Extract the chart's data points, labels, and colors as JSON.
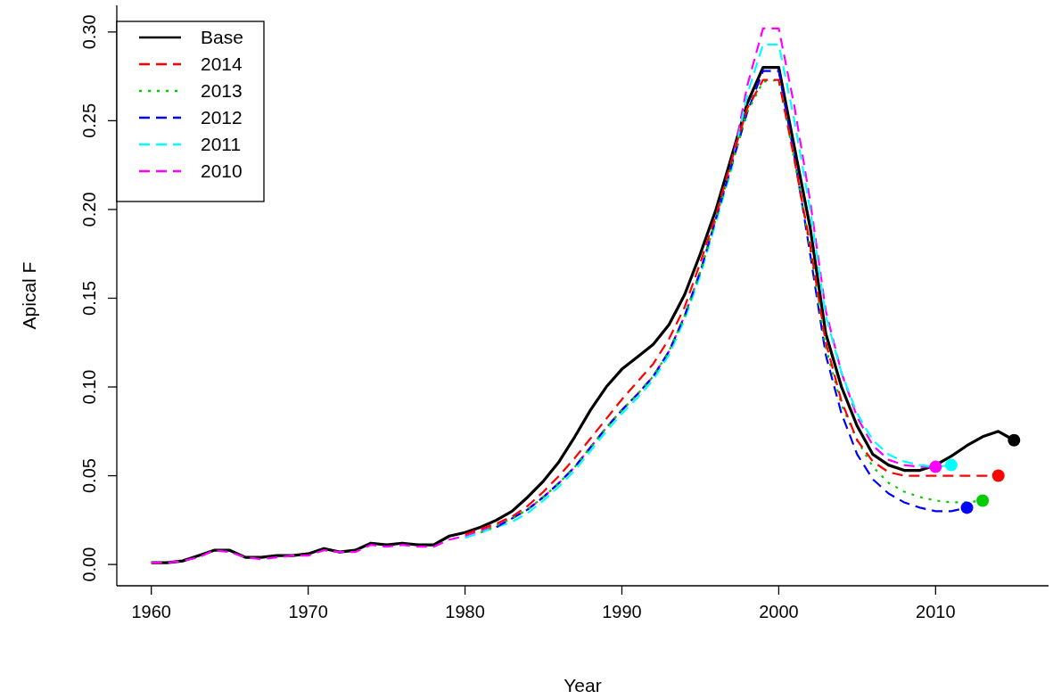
{
  "chart_data": {
    "type": "line",
    "xlabel": "Year",
    "ylabel": "Apical F",
    "x": [
      1960,
      1961,
      1962,
      1963,
      1964,
      1965,
      1966,
      1967,
      1968,
      1969,
      1970,
      1971,
      1972,
      1973,
      1974,
      1975,
      1976,
      1977,
      1978,
      1979,
      1980,
      1981,
      1982,
      1983,
      1984,
      1985,
      1986,
      1987,
      1988,
      1989,
      1990,
      1991,
      1992,
      1993,
      1994,
      1995,
      1996,
      1997,
      1998,
      1999,
      2000,
      2001,
      2002,
      2003,
      2004,
      2005,
      2006,
      2007,
      2008,
      2009,
      2010,
      2011,
      2012,
      2013,
      2014,
      2015
    ],
    "xlim": [
      1957.8,
      2017.2
    ],
    "xticks": [
      1960,
      1970,
      1980,
      1990,
      2000,
      2010
    ],
    "ylim": [
      -0.012,
      0.315
    ],
    "yticks": [
      {
        "value": 0,
        "label": "0.00"
      },
      {
        "value": 0.05,
        "label": "0.05"
      },
      {
        "value": 0.1,
        "label": "0.10"
      },
      {
        "value": 0.15,
        "label": "0.15"
      },
      {
        "value": 0.2,
        "label": "0.20"
      },
      {
        "value": 0.25,
        "label": "0.25"
      },
      {
        "value": 0.3,
        "label": "0.30"
      }
    ],
    "grid": false,
    "legend": "top left",
    "series": [
      {
        "name": "Base",
        "color": "#000000",
        "line_style": "solid",
        "values": [
          0.001,
          0.001,
          0.002,
          0.005,
          0.008,
          0.008,
          0.004,
          0.004,
          0.005,
          0.005,
          0.006,
          0.009,
          0.007,
          0.008,
          0.012,
          0.011,
          0.012,
          0.011,
          0.011,
          0.016,
          0.018,
          0.021,
          0.025,
          0.03,
          0.038,
          0.047,
          0.058,
          0.072,
          0.087,
          0.1,
          0.11,
          0.117,
          0.124,
          0.135,
          0.152,
          0.175,
          0.2,
          0.23,
          0.26,
          0.28,
          0.28,
          0.235,
          0.19,
          0.13,
          0.1,
          0.078,
          0.062,
          0.056,
          0.053,
          0.053,
          0.056,
          0.061,
          0.067,
          0.072,
          0.075,
          0.07
        ]
      },
      {
        "name": "2014",
        "color": "#ff0000",
        "line_style": "dashed",
        "values": [
          null,
          null,
          null,
          null,
          null,
          null,
          null,
          null,
          null,
          null,
          null,
          null,
          null,
          null,
          null,
          null,
          null,
          null,
          null,
          null,
          0.017,
          0.02,
          0.023,
          0.027,
          0.033,
          0.041,
          0.05,
          0.06,
          0.071,
          0.082,
          0.093,
          0.103,
          0.113,
          0.127,
          0.145,
          0.17,
          0.197,
          0.228,
          0.257,
          0.273,
          0.273,
          0.228,
          0.18,
          0.125,
          0.092,
          0.07,
          0.058,
          0.052,
          0.05,
          0.05,
          0.05,
          0.05,
          0.05,
          0.05,
          0.05,
          null
        ]
      },
      {
        "name": "2013",
        "color": "#00cd00",
        "line_style": "dotted",
        "values": [
          null,
          null,
          null,
          null,
          null,
          null,
          null,
          null,
          null,
          null,
          null,
          null,
          null,
          null,
          null,
          null,
          null,
          null,
          null,
          null,
          null,
          0.018,
          0.022,
          0.026,
          0.031,
          0.038,
          0.046,
          0.055,
          0.066,
          0.077,
          0.087,
          0.096,
          0.106,
          0.12,
          0.14,
          0.165,
          0.195,
          0.225,
          0.255,
          0.272,
          0.273,
          0.228,
          0.178,
          0.122,
          0.09,
          0.07,
          0.055,
          0.046,
          0.041,
          0.038,
          0.036,
          0.035,
          0.035,
          0.036,
          null,
          null
        ]
      },
      {
        "name": "2012",
        "color": "#0000ff",
        "line_style": "dashed",
        "values": [
          null,
          null,
          null,
          null,
          null,
          null,
          null,
          null,
          null,
          null,
          null,
          null,
          null,
          null,
          null,
          null,
          null,
          null,
          null,
          null,
          null,
          null,
          0.021,
          0.026,
          0.031,
          0.038,
          0.046,
          0.055,
          0.066,
          0.077,
          0.087,
          0.096,
          0.106,
          0.12,
          0.14,
          0.165,
          0.195,
          0.225,
          0.255,
          0.278,
          0.278,
          0.23,
          0.175,
          0.118,
          0.085,
          0.062,
          0.048,
          0.04,
          0.035,
          0.032,
          0.03,
          0.03,
          0.032,
          null,
          null,
          null
        ]
      },
      {
        "name": "2011",
        "color": "#00ffff",
        "line_style": "dashed",
        "values": [
          null,
          null,
          null,
          null,
          null,
          null,
          null,
          null,
          null,
          null,
          null,
          null,
          null,
          null,
          null,
          null,
          null,
          null,
          null,
          null,
          0.015,
          0.018,
          0.021,
          0.024,
          0.029,
          0.036,
          0.044,
          0.053,
          0.064,
          0.075,
          0.085,
          0.094,
          0.104,
          0.118,
          0.138,
          0.163,
          0.193,
          0.223,
          0.265,
          0.293,
          0.293,
          0.25,
          0.2,
          0.14,
          0.108,
          0.085,
          0.07,
          0.062,
          0.058,
          0.056,
          0.055,
          0.056,
          null,
          null,
          null,
          null
        ]
      },
      {
        "name": "2010",
        "color": "#ff00ff",
        "line_style": "dashed",
        "values": [
          0.001,
          0.001,
          0.002,
          0.004,
          0.008,
          0.007,
          0.004,
          0.003,
          0.004,
          0.005,
          0.005,
          0.008,
          0.007,
          0.007,
          0.011,
          0.01,
          0.011,
          0.01,
          0.01,
          0.014,
          0.016,
          0.019,
          0.022,
          0.026,
          0.031,
          0.038,
          0.046,
          0.055,
          0.066,
          0.077,
          0.087,
          0.096,
          0.106,
          0.12,
          0.14,
          0.165,
          0.195,
          0.225,
          0.27,
          0.302,
          0.302,
          0.258,
          0.205,
          0.143,
          0.108,
          0.083,
          0.067,
          0.059,
          0.056,
          0.055,
          0.055,
          null,
          null,
          null,
          null,
          null
        ]
      },
      {
        "type": "scatter",
        "marker": "circle",
        "color": "#000000",
        "x": [
          2015
        ],
        "values": [
          0.07
        ]
      },
      {
        "type": "scatter",
        "marker": "circle",
        "color": "#ff0000",
        "x": [
          2014
        ],
        "values": [
          0.05
        ]
      },
      {
        "type": "scatter",
        "marker": "circle",
        "color": "#00cd00",
        "x": [
          2013
        ],
        "values": [
          0.036
        ]
      },
      {
        "type": "scatter",
        "marker": "circle",
        "color": "#0000ff",
        "x": [
          2012
        ],
        "values": [
          0.032
        ]
      },
      {
        "type": "scatter",
        "marker": "circle",
        "color": "#00ffff",
        "x": [
          2011
        ],
        "values": [
          0.056
        ]
      },
      {
        "type": "scatter",
        "marker": "circle",
        "color": "#ff00ff",
        "x": [
          2010
        ],
        "values": [
          0.055
        ]
      }
    ]
  }
}
